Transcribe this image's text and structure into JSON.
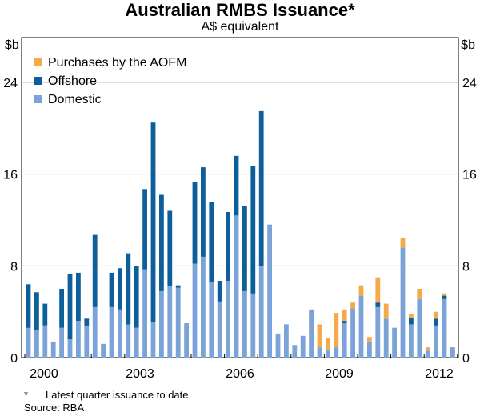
{
  "chart_data": {
    "type": "bar",
    "stacked": true,
    "title": "Australian RMBS Issuance*",
    "subtitle": "A$ equivalent",
    "ylabel_left": "$b",
    "ylabel_right": "$b",
    "ylim": [
      0,
      24
    ],
    "yticks": [
      0,
      8,
      16,
      24
    ],
    "xticks": [
      "2000",
      "2003",
      "2006",
      "2009",
      "2012"
    ],
    "grid": true,
    "legend_position": "top-left",
    "colors": {
      "Purchases by the AOFM": "#f5a94a",
      "Offshore": "#0d5f9c",
      "Domestic": "#7ba3d8"
    },
    "series": [
      {
        "name": "Domestic",
        "values": [
          2.6,
          2.4,
          2.8,
          1.4,
          2.6,
          1.6,
          3.2,
          2.8,
          4.4,
          1.2,
          4.4,
          4.2,
          2.9,
          2.6,
          7.7,
          3.1,
          5.8,
          6.2,
          6.1,
          3.0,
          8.2,
          8.8,
          6.6,
          4.9,
          6.7,
          12.4,
          5.8,
          5.6,
          8.0,
          11.6,
          2.1,
          2.9,
          1.1,
          1.9,
          4.2,
          0.9,
          0.7,
          0.9,
          3.0,
          4.3,
          5.4,
          1.4,
          4.4,
          3.4,
          2.6,
          9.6,
          2.9,
          5.1,
          0.6,
          2.8,
          5.1,
          0.9
        ],
        "offshore": [
          3.8,
          3.3,
          1.9,
          0,
          3.4,
          5.7,
          4.2,
          0.6,
          6.3,
          0,
          3.0,
          3.6,
          6.2,
          5.4,
          7.0,
          17.4,
          8.4,
          6.6,
          0.2,
          0,
          7.1,
          7.8,
          7.0,
          1.8,
          6.0,
          5.2,
          7.4,
          11.1,
          13.5,
          0,
          0,
          0,
          0,
          0,
          0,
          0,
          0,
          0,
          0.2,
          0,
          0,
          0,
          0.4,
          0,
          0,
          0,
          0.6,
          0,
          0,
          0.6,
          0.3,
          0
        ]
      },
      {
        "name": "Offshore",
        "values": [
          3.8,
          3.3,
          1.9,
          0,
          3.4,
          5.7,
          4.2,
          0.6,
          6.3,
          0,
          3.0,
          3.6,
          6.2,
          5.4,
          7.0,
          17.4,
          8.4,
          6.6,
          0.2,
          0,
          7.1,
          7.8,
          7.0,
          1.8,
          6.0,
          5.2,
          7.4,
          11.1,
          13.5,
          0,
          0,
          0,
          0,
          0,
          0,
          0,
          0,
          0,
          0.2,
          0,
          0,
          0,
          0.4,
          0,
          0,
          0,
          0.6,
          0,
          0,
          0.6,
          0.3,
          0
        ]
      },
      {
        "name": "Purchases by the AOFM",
        "values": [
          0,
          0,
          0,
          0,
          0,
          0,
          0,
          0,
          0,
          0,
          0,
          0,
          0,
          0,
          0,
          0,
          0,
          0,
          0,
          0,
          0,
          0,
          0,
          0,
          0,
          0,
          0,
          0,
          0,
          0,
          0,
          0,
          0,
          0,
          0,
          2.0,
          1.0,
          3.0,
          1.0,
          0.5,
          0.9,
          0.4,
          2.2,
          1.3,
          0,
          0.8,
          0.3,
          0.9,
          0.3,
          0.6,
          0.2,
          0
        ]
      }
    ]
  },
  "footnote_marker": "*",
  "footnote": "Latest quarter issuance to date",
  "source": "Source: RBA"
}
